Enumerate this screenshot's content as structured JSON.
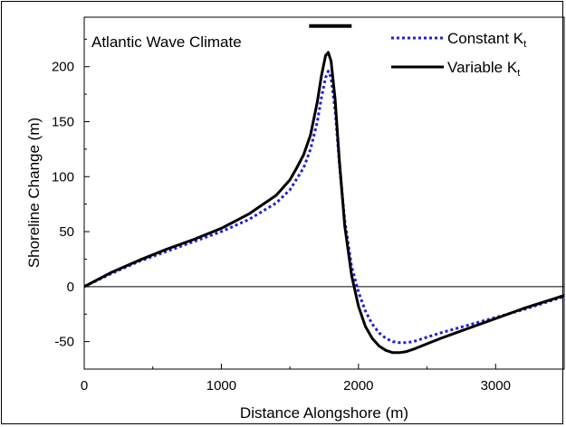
{
  "chart_data": {
    "type": "line",
    "annotation": "Atlantic Wave Climate",
    "xlabel": "Distance Alongshore (m)",
    "ylabel": "Shoreline Change (m)",
    "xlim": [
      0,
      3500
    ],
    "ylim": [
      -75,
      245
    ],
    "xticks": [
      0,
      1000,
      2000,
      3000
    ],
    "yticks": [
      -50,
      0,
      50,
      100,
      150,
      200
    ],
    "zero_line": true,
    "legend_position": "top-right",
    "structure_bar": {
      "x_start": 1640,
      "x_end": 1950,
      "y": 237
    },
    "series": [
      {
        "name": "Constant K",
        "name_subscript": "t",
        "color": "#1f1fd6",
        "style": "dotted",
        "x": [
          0,
          200,
          400,
          600,
          800,
          1000,
          1200,
          1400,
          1500,
          1600,
          1650,
          1700,
          1730,
          1760,
          1780,
          1800,
          1830,
          1860,
          1900,
          1950,
          2000,
          2050,
          2100,
          2150,
          2200,
          2250,
          2300,
          2350,
          2400,
          2500,
          2600,
          2800,
          3000,
          3200,
          3400,
          3500
        ],
        "y": [
          0,
          12,
          23,
          32,
          41,
          50,
          61,
          76,
          88,
          108,
          125,
          150,
          172,
          190,
          196,
          190,
          160,
          112,
          60,
          18,
          -5,
          -22,
          -34,
          -42,
          -47,
          -50,
          -51,
          -51,
          -50,
          -46,
          -42,
          -35,
          -28,
          -21,
          -13,
          -9
        ]
      },
      {
        "name": "Variable K",
        "name_subscript": "t",
        "color": "#000000",
        "style": "solid",
        "x": [
          0,
          200,
          400,
          600,
          800,
          1000,
          1200,
          1400,
          1500,
          1550,
          1600,
          1650,
          1700,
          1730,
          1760,
          1780,
          1800,
          1830,
          1860,
          1900,
          1950,
          2000,
          2050,
          2100,
          2150,
          2200,
          2250,
          2300,
          2350,
          2400,
          2500,
          2600,
          2800,
          3000,
          3200,
          3400,
          3500
        ],
        "y": [
          0,
          13,
          24,
          34,
          43,
          53,
          66,
          83,
          97,
          108,
          120,
          138,
          168,
          192,
          210,
          213,
          205,
          170,
          115,
          55,
          10,
          -18,
          -36,
          -47,
          -54,
          -58,
          -60,
          -60,
          -59,
          -57,
          -52,
          -47,
          -38,
          -29,
          -20,
          -12,
          -8
        ]
      }
    ]
  }
}
